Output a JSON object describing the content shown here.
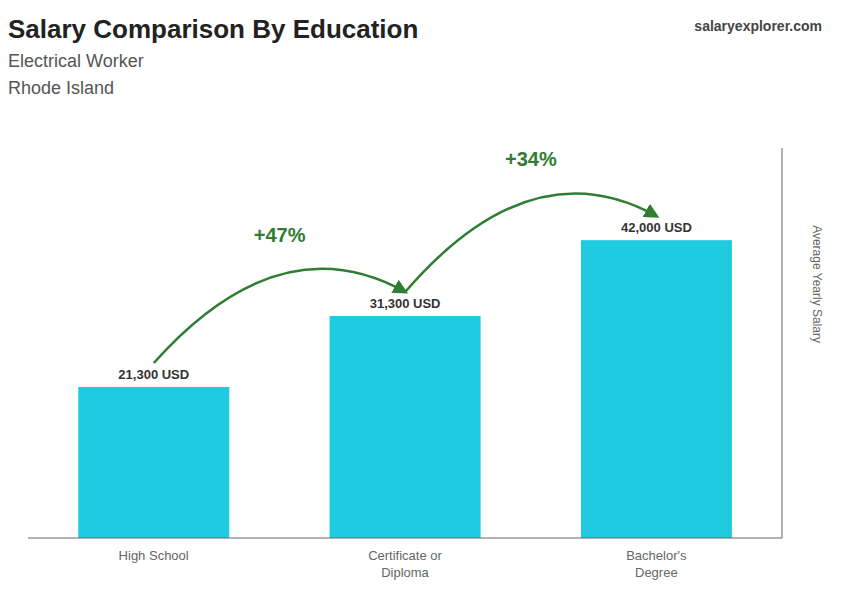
{
  "chart_data": {
    "type": "bar",
    "title": "Salary Comparison By Education",
    "subtitle": [
      "Electrical Worker",
      "Rhode Island"
    ],
    "categories": [
      "High School",
      "Certificate or\nDiploma",
      "Bachelor's\nDegree"
    ],
    "values": [
      21300,
      31300,
      42000
    ],
    "value_labels": [
      "21,300 USD",
      "31,300 USD",
      "42,000 USD"
    ],
    "data_labels": true,
    "color": "#1ecbe1",
    "ylabel": "Average Yearly Salary",
    "ylim": [
      0,
      55000
    ],
    "tick_labels": false,
    "grid": false,
    "annotations": [
      {
        "text": "salaryexplorer.com"
      },
      {
        "text": "+47%",
        "between": [
          "High School",
          "Certificate or\nDiploma"
        ]
      },
      {
        "text": "+34%",
        "between": [
          "Certificate or\nDiploma",
          "Bachelor's\nDegree"
        ]
      }
    ]
  }
}
